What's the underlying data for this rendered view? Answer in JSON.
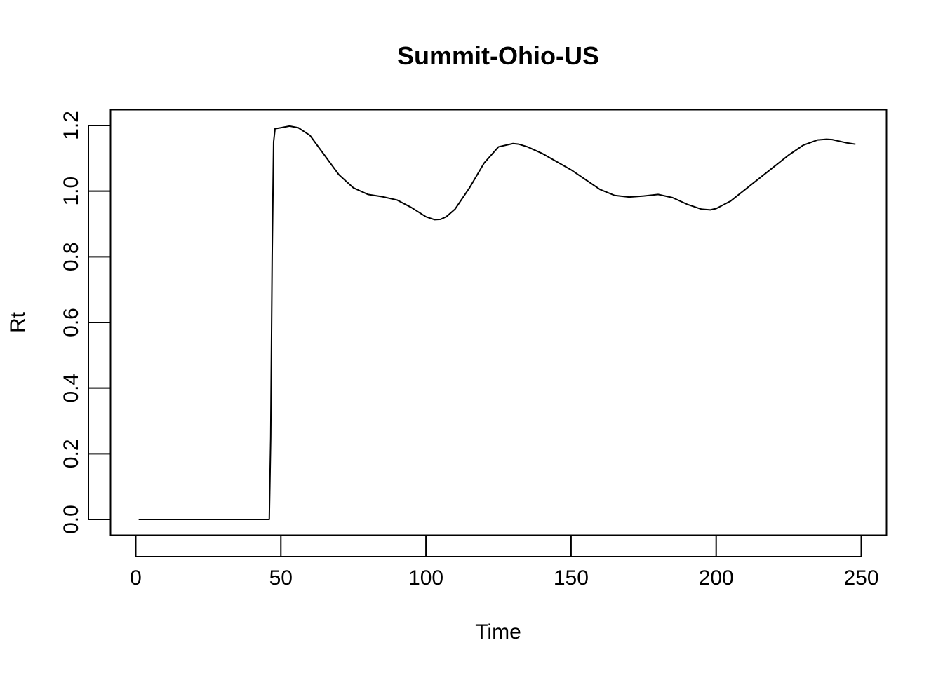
{
  "chart_data": {
    "type": "line",
    "title": "Summit-Ohio-US",
    "xlabel": "Time",
    "ylabel": "Rt",
    "xlim": [
      -8.7,
      258.7
    ],
    "ylim": [
      -0.048,
      1.248
    ],
    "xticks": [
      0,
      50,
      100,
      150,
      200,
      250
    ],
    "yticks": [
      0.0,
      0.2,
      0.4,
      0.6,
      0.8,
      1.0,
      1.2
    ],
    "xtick_labels": [
      "0",
      "50",
      "100",
      "150",
      "200",
      "250"
    ],
    "ytick_labels": [
      "0.0",
      "0.2",
      "0.4",
      "0.6",
      "0.8",
      "1.0",
      "1.2"
    ],
    "grid": false,
    "line_color": "#000000",
    "series": [
      {
        "x": [
          1,
          10,
          20,
          30,
          40,
          46,
          46.5,
          47,
          47.5,
          48,
          50,
          53,
          56,
          60,
          65,
          70,
          75,
          80,
          85,
          90,
          95,
          100,
          103,
          105,
          107,
          110,
          115,
          120,
          125,
          130,
          132,
          135,
          140,
          145,
          150,
          155,
          160,
          165,
          170,
          175,
          180,
          185,
          190,
          195,
          198,
          200,
          205,
          210,
          215,
          220,
          225,
          230,
          235,
          238,
          240,
          245,
          248
        ],
        "y": [
          0.0,
          0.0,
          0.0,
          0.0,
          0.0,
          0.0,
          0.25,
          0.8,
          1.15,
          1.19,
          1.193,
          1.198,
          1.193,
          1.17,
          1.11,
          1.05,
          1.01,
          0.99,
          0.983,
          0.973,
          0.95,
          0.922,
          0.913,
          0.914,
          0.922,
          0.945,
          1.01,
          1.085,
          1.135,
          1.145,
          1.143,
          1.135,
          1.115,
          1.09,
          1.065,
          1.035,
          1.005,
          0.987,
          0.982,
          0.985,
          0.99,
          0.98,
          0.96,
          0.945,
          0.943,
          0.947,
          0.97,
          1.005,
          1.04,
          1.075,
          1.11,
          1.14,
          1.156,
          1.158,
          1.157,
          1.147,
          1.143
        ]
      }
    ]
  }
}
